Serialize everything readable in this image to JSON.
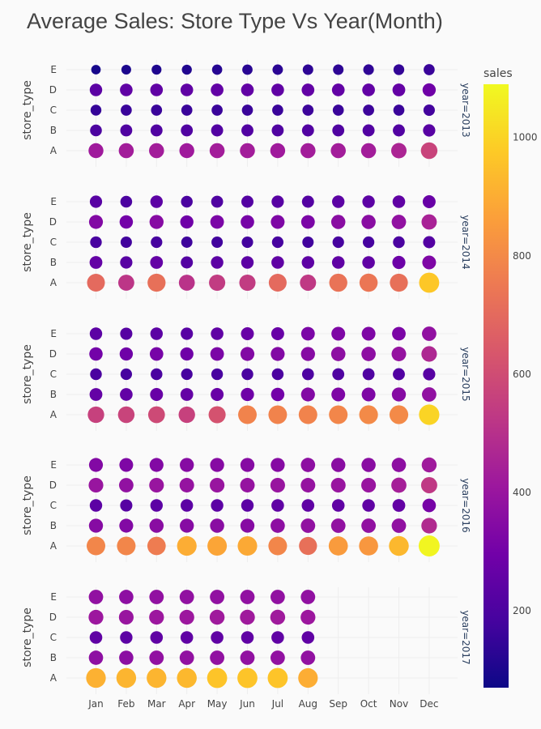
{
  "chart_data": {
    "type": "scatter",
    "title": "Average Sales: Store Type Vs Year(Month)",
    "ylabel": "store_type",
    "xlabel": "",
    "months": [
      "Jan",
      "Feb",
      "Mar",
      "Apr",
      "May",
      "Jun",
      "Jul",
      "Aug",
      "Sep",
      "Oct",
      "Nov",
      "Dec"
    ],
    "store_types": [
      "A",
      "B",
      "C",
      "D",
      "E"
    ],
    "colorbar": {
      "title": "sales",
      "range": [
        70,
        1090
      ],
      "ticks": [
        200,
        400,
        600,
        800,
        1000
      ],
      "colorscale": [
        "#0d0887",
        "#46039f",
        "#7201a8",
        "#9c179e",
        "#bd3786",
        "#d8576b",
        "#ed7953",
        "#fb9f3a",
        "#fdca26",
        "#f0f921"
      ]
    },
    "size_encoding": "sales",
    "facets": [
      {
        "label": "year=2013",
        "sales": {
          "A": [
            420,
            430,
            430,
            420,
            430,
            430,
            420,
            430,
            430,
            430,
            460,
            570
          ],
          "B": [
            200,
            210,
            210,
            210,
            215,
            215,
            210,
            215,
            210,
            215,
            215,
            230
          ],
          "C": [
            150,
            160,
            160,
            160,
            160,
            160,
            160,
            165,
            160,
            165,
            160,
            180
          ],
          "D": [
            240,
            250,
            250,
            250,
            255,
            255,
            250,
            255,
            255,
            255,
            260,
            290
          ],
          "E": [
            90,
            100,
            105,
            110,
            120,
            125,
            130,
            135,
            135,
            140,
            145,
            160
          ]
        }
      },
      {
        "label": "year=2014",
        "sales": {
          "A": [
            700,
            520,
            720,
            510,
            540,
            540,
            700,
            530,
            730,
            740,
            720,
            970
          ],
          "B": [
            260,
            230,
            260,
            220,
            240,
            240,
            250,
            245,
            250,
            250,
            280,
            330
          ],
          "C": [
            190,
            175,
            185,
            170,
            175,
            180,
            185,
            175,
            185,
            185,
            195,
            220
          ],
          "D": [
            340,
            300,
            350,
            290,
            320,
            310,
            330,
            320,
            360,
            360,
            380,
            450
          ],
          "E": [
            230,
            200,
            240,
            195,
            210,
            220,
            230,
            220,
            240,
            240,
            250,
            270
          ]
        }
      },
      {
        "label": "year=2015",
        "sales": {
          "A": [
            560,
            570,
            590,
            560,
            620,
            780,
            780,
            780,
            790,
            800,
            800,
            1000
          ],
          "B": [
            260,
            255,
            270,
            260,
            270,
            290,
            300,
            340,
            330,
            330,
            350,
            380
          ],
          "C": [
            195,
            185,
            195,
            185,
            190,
            195,
            200,
            205,
            210,
            210,
            215,
            230
          ],
          "D": [
            300,
            290,
            310,
            290,
            320,
            340,
            340,
            350,
            370,
            370,
            390,
            470
          ],
          "E": [
            240,
            225,
            240,
            230,
            250,
            270,
            270,
            320,
            330,
            330,
            320,
            380
          ]
        }
      },
      {
        "label": "year=2016",
        "sales": {
          "A": [
            790,
            790,
            760,
            900,
            880,
            890,
            790,
            720,
            850,
            840,
            930,
            1080
          ],
          "B": [
            350,
            340,
            360,
            350,
            360,
            350,
            370,
            380,
            380,
            380,
            380,
            480
          ],
          "C": [
            240,
            225,
            240,
            240,
            240,
            240,
            250,
            250,
            250,
            250,
            260,
            310
          ],
          "D": [
            400,
            380,
            400,
            390,
            400,
            390,
            400,
            390,
            400,
            400,
            440,
            530
          ],
          "E": [
            340,
            330,
            340,
            350,
            350,
            350,
            350,
            370,
            360,
            360,
            370,
            420
          ]
        }
      },
      {
        "label": "year=2017",
        "sales": {
          "A": [
            910,
            920,
            920,
            930,
            960,
            960,
            960,
            900
          ],
          "B": [
            370,
            365,
            380,
            380,
            380,
            380,
            380,
            380
          ],
          "C": [
            250,
            240,
            250,
            250,
            250,
            250,
            250,
            250
          ],
          "D": [
            410,
            400,
            410,
            410,
            420,
            420,
            420,
            410
          ],
          "E": [
            380,
            370,
            380,
            380,
            380,
            380,
            380,
            380
          ]
        }
      }
    ]
  }
}
